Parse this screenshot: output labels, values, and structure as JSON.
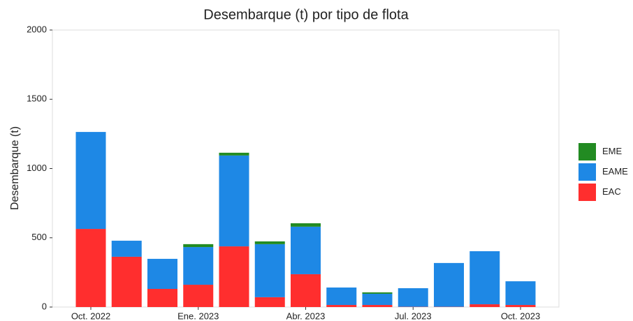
{
  "chart_data": {
    "type": "stacked-bar",
    "title": "Desembarque (t) por tipo de flota",
    "y_label": "Desembarque (t)",
    "categories": [
      "Oct. 2022",
      null,
      null,
      "Ene. 2023",
      null,
      null,
      "Abr. 2023",
      null,
      null,
      "Jul. 2023",
      null,
      null,
      "Oct. 2023"
    ],
    "series": [
      {
        "name": "EAC",
        "color": "#ff2e2e",
        "values": [
          564,
          363,
          131,
          161,
          438,
          71,
          237,
          15,
          15,
          2,
          2,
          20,
          15
        ]
      },
      {
        "name": "EAME",
        "color": "#1e88e5",
        "values": [
          700,
          116,
          217,
          272,
          656,
          383,
          343,
          126,
          81,
          134,
          316,
          383,
          171
        ]
      },
      {
        "name": "EME",
        "color": "#228b22",
        "values": [
          0,
          0,
          0,
          21,
          20,
          20,
          25,
          0,
          10,
          0,
          0,
          0,
          0
        ]
      }
    ],
    "ylim": [
      0,
      2000
    ],
    "yticks": [
      0,
      500,
      1000,
      1500,
      2000
    ],
    "legend": "right"
  }
}
